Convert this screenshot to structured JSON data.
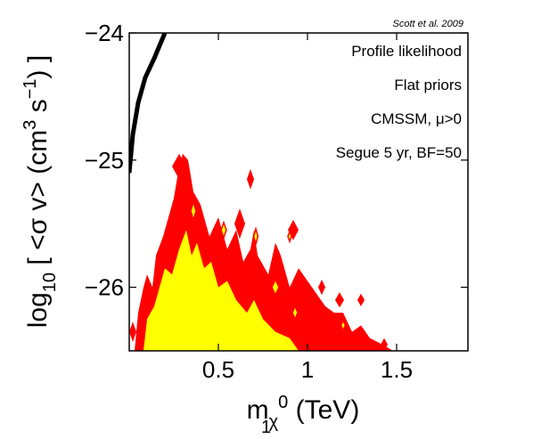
{
  "chart_data": {
    "type": "heatmap",
    "title": "",
    "citation": "Scott et al. 2009",
    "xlabel": {
      "main": "m",
      "sub": "χ",
      "subsub": "1",
      "sup": "0",
      "unit": " (TeV)"
    },
    "ylabel": {
      "pre": "log",
      "sub": "10",
      "mid": " [ <σ v> (cm",
      "sup1": "3",
      "mid2": " s",
      "sup2": "−1",
      "post": ") ]"
    },
    "xlim": [
      0,
      1.9
    ],
    "ylim": [
      -26.5,
      -24
    ],
    "x_ticks": [
      {
        "value": 0.5,
        "label": "0.5"
      },
      {
        "value": 1.0,
        "label": "1"
      },
      {
        "value": 1.5,
        "label": "1.5"
      }
    ],
    "y_ticks": [
      {
        "value": -24,
        "label": "−24"
      },
      {
        "value": -25,
        "label": "−25"
      },
      {
        "value": -26,
        "label": "−26"
      }
    ],
    "annotations": [
      "Profile likelihood",
      "Flat priors",
      "CMSSM, μ>0",
      "Segue 5 yr, BF=50"
    ],
    "legend": "none",
    "grid": false,
    "colors": {
      "outer_region": "#ff0000",
      "inner_region": "#ffff00",
      "limit_curve": "#000000"
    },
    "limit_curve": {
      "x": [
        0.0,
        0.02,
        0.05,
        0.09,
        0.14,
        0.2
      ],
      "y": [
        -25.1,
        -24.8,
        -24.55,
        -24.35,
        -24.2,
        -24.0
      ]
    },
    "outer_region": [
      [
        0.03,
        -26.5
      ],
      [
        0.05,
        -26.2
      ],
      [
        0.08,
        -26.0
      ],
      [
        0.1,
        -25.9
      ],
      [
        0.13,
        -26.0
      ],
      [
        0.15,
        -25.75
      ],
      [
        0.19,
        -25.6
      ],
      [
        0.22,
        -25.45
      ],
      [
        0.25,
        -25.3
      ],
      [
        0.28,
        -25.05
      ],
      [
        0.3,
        -24.95
      ],
      [
        0.33,
        -25.0
      ],
      [
        0.36,
        -25.25
      ],
      [
        0.4,
        -25.35
      ],
      [
        0.45,
        -25.6
      ],
      [
        0.5,
        -25.45
      ],
      [
        0.55,
        -25.7
      ],
      [
        0.6,
        -25.55
      ],
      [
        0.64,
        -25.8
      ],
      [
        0.68,
        -25.7
      ],
      [
        0.7,
        -25.55
      ],
      [
        0.72,
        -25.75
      ],
      [
        0.78,
        -25.9
      ],
      [
        0.82,
        -25.65
      ],
      [
        0.85,
        -25.75
      ],
      [
        0.9,
        -26.0
      ],
      [
        0.95,
        -25.85
      ],
      [
        1.0,
        -25.95
      ],
      [
        1.05,
        -26.05
      ],
      [
        1.1,
        -26.15
      ],
      [
        1.15,
        -26.2
      ],
      [
        1.2,
        -26.2
      ],
      [
        1.25,
        -26.35
      ],
      [
        1.3,
        -26.3
      ],
      [
        1.35,
        -26.4
      ],
      [
        1.42,
        -26.45
      ],
      [
        1.48,
        -26.5
      ]
    ],
    "inner_region": [
      [
        0.08,
        -26.5
      ],
      [
        0.1,
        -26.25
      ],
      [
        0.14,
        -26.15
      ],
      [
        0.17,
        -26.0
      ],
      [
        0.2,
        -25.85
      ],
      [
        0.24,
        -25.9
      ],
      [
        0.28,
        -25.7
      ],
      [
        0.32,
        -25.55
      ],
      [
        0.35,
        -25.75
      ],
      [
        0.38,
        -25.65
      ],
      [
        0.42,
        -25.85
      ],
      [
        0.46,
        -25.8
      ],
      [
        0.5,
        -26.0
      ],
      [
        0.55,
        -25.95
      ],
      [
        0.6,
        -26.1
      ],
      [
        0.66,
        -26.2
      ],
      [
        0.7,
        -26.1
      ],
      [
        0.75,
        -26.25
      ],
      [
        0.82,
        -26.35
      ],
      [
        0.9,
        -26.4
      ],
      [
        0.95,
        -26.5
      ]
    ],
    "red_islands": [
      {
        "x": 0.28,
        "y": -25.05,
        "rx": 0.04,
        "ry": 0.1
      },
      {
        "x": 0.62,
        "y": -25.5,
        "rx": 0.03,
        "ry": 0.12
      },
      {
        "x": 0.68,
        "y": -25.15,
        "rx": 0.02,
        "ry": 0.08
      },
      {
        "x": 0.92,
        "y": -25.55,
        "rx": 0.03,
        "ry": 0.08
      },
      {
        "x": 1.08,
        "y": -26.0,
        "rx": 0.02,
        "ry": 0.06
      },
      {
        "x": 1.18,
        "y": -26.1,
        "rx": 0.025,
        "ry": 0.06
      },
      {
        "x": 1.3,
        "y": -26.1,
        "rx": 0.02,
        "ry": 0.05
      },
      {
        "x": 1.43,
        "y": -26.45,
        "rx": 0.02,
        "ry": 0.05
      },
      {
        "x": 0.02,
        "y": -26.35,
        "rx": 0.02,
        "ry": 0.08
      }
    ],
    "yellow_islands": [
      {
        "x": 0.36,
        "y": -25.4,
        "rx": 0.015,
        "ry": 0.07
      },
      {
        "x": 0.53,
        "y": -25.55,
        "rx": 0.015,
        "ry": 0.06
      },
      {
        "x": 0.71,
        "y": -25.6,
        "rx": 0.012,
        "ry": 0.06
      },
      {
        "x": 0.82,
        "y": -26.0,
        "rx": 0.02,
        "ry": 0.06
      },
      {
        "x": 0.93,
        "y": -26.2,
        "rx": 0.015,
        "ry": 0.05
      },
      {
        "x": 1.2,
        "y": -26.3,
        "rx": 0.012,
        "ry": 0.04
      },
      {
        "x": 0.9,
        "y": -25.6,
        "rx": 0.01,
        "ry": 0.04
      }
    ]
  }
}
